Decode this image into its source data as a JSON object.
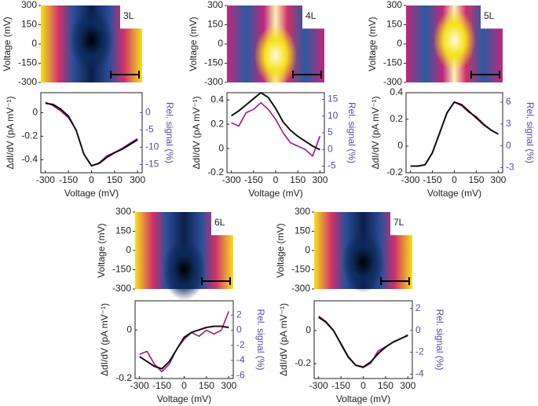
{
  "chart_data": [
    {
      "type": "heatmap",
      "label": "3L",
      "ylabel": "Voltage (mV)",
      "ylim": [
        -300,
        300
      ],
      "yticks": [
        300,
        150,
        0,
        -150,
        -300
      ]
    },
    {
      "type": "line",
      "xlabel": "Voltage (mV)",
      "ylabel": "ΔdI/dV (pA mV⁻¹)",
      "y2label": "Rel. signal (%)",
      "x": [
        -300,
        -250,
        -200,
        -150,
        -100,
        -50,
        0,
        50,
        100,
        150,
        200,
        250,
        300
      ],
      "xlim": [
        -330,
        330
      ],
      "xticks": [
        -300,
        -150,
        0,
        150,
        300
      ],
      "ylim": [
        -0.51,
        0.17
      ],
      "yticks": [
        0,
        -0.2,
        -0.4
      ],
      "y2lim": [
        -17.4,
        5.8
      ],
      "y2ticks": [
        0,
        -5,
        -10,
        -15
      ],
      "series": [
        {
          "color": "#a0157d",
          "axis": "y2",
          "values": [
            3,
            2,
            0.5,
            -1.5,
            -5,
            -12,
            -15.5,
            -14.5,
            -12.5,
            -11.5,
            -10.3,
            -8.9,
            -7.5
          ]
        },
        {
          "color": "#111111",
          "values": [
            0.08,
            0.07,
            0.03,
            -0.03,
            -0.15,
            -0.35,
            -0.45,
            -0.43,
            -0.38,
            -0.34,
            -0.31,
            -0.27,
            -0.23
          ]
        }
      ]
    },
    {
      "type": "heatmap",
      "label": "4L",
      "ylabel": "Voltage (mV)",
      "ylim": [
        -300,
        300
      ],
      "yticks": [
        300,
        150,
        0,
        -150,
        -300
      ]
    },
    {
      "type": "line",
      "xlabel": "Voltage (mV)",
      "ylabel": "ΔdI/dV (pA mV⁻¹)",
      "y2label": "Rel. signal (%)",
      "x": [
        -300,
        -250,
        -200,
        -150,
        -100,
        -50,
        0,
        50,
        100,
        150,
        200,
        250,
        300
      ],
      "xlim": [
        -330,
        330
      ],
      "xticks": [
        -300,
        -150,
        0,
        150,
        300
      ],
      "ylim": [
        -0.2,
        0.46
      ],
      "yticks": [
        0.4,
        0.2,
        0,
        -0.2
      ],
      "y2lim": [
        -7,
        17
      ],
      "y2ticks": [
        15,
        10,
        5,
        0,
        -5
      ],
      "series": [
        {
          "color": "#a0157d",
          "axis": "y2",
          "values": [
            8,
            7,
            11,
            12,
            14,
            12,
            9,
            5,
            2,
            1,
            0,
            -2,
            4
          ]
        },
        {
          "color": "#111111",
          "values": [
            0.27,
            0.31,
            0.36,
            0.41,
            0.46,
            0.42,
            0.33,
            0.22,
            0.15,
            0.1,
            0.06,
            0.02,
            -0.01
          ]
        }
      ]
    },
    {
      "type": "heatmap",
      "label": "5L",
      "ylabel": "Voltage (mV)",
      "ylim": [
        -300,
        300
      ],
      "yticks": [
        300,
        150,
        0,
        -150,
        -300
      ]
    },
    {
      "type": "line",
      "xlabel": "Voltage (mV)",
      "ylabel": "ΔdI/dV (pA mV⁻¹)",
      "y2label": "Rel. signal (%)",
      "x": [
        -300,
        -250,
        -200,
        -150,
        -100,
        -50,
        0,
        50,
        100,
        150,
        200,
        250,
        300
      ],
      "xlim": [
        -330,
        330
      ],
      "xticks": [
        -300,
        -150,
        0,
        150,
        300
      ],
      "ylim": [
        -0.2,
        0.4
      ],
      "yticks": [
        0.4,
        0.2,
        0,
        -0.2
      ],
      "y2lim": [
        -3.7,
        7.3
      ],
      "y2ticks": [
        6,
        3,
        0,
        -3
      ],
      "series": [
        {
          "color": "#a0157d",
          "axis": "y2",
          "values": [
            -2.8,
            -2.8,
            -2.6,
            -1,
            1.8,
            4.5,
            6,
            5.5,
            4.6,
            4,
            3,
            2.2,
            1.6
          ]
        },
        {
          "color": "#111111",
          "values": [
            -0.15,
            -0.15,
            -0.14,
            -0.05,
            0.1,
            0.25,
            0.33,
            0.31,
            0.26,
            0.21,
            0.16,
            0.12,
            0.09
          ]
        }
      ]
    },
    {
      "type": "heatmap",
      "label": "6L",
      "ylabel": "Voltage (mV)",
      "ylim": [
        -300,
        300
      ],
      "yticks": [
        300,
        150,
        0,
        -150,
        -300
      ]
    },
    {
      "type": "line",
      "xlabel": "Voltage (mV)",
      "ylabel": "ΔdI/dV (pA mV⁻¹)",
      "y2label": "Rel. signal (%)",
      "x": [
        -300,
        -250,
        -200,
        -150,
        -100,
        -50,
        0,
        50,
        100,
        150,
        200,
        250,
        300
      ],
      "xlim": [
        -330,
        330
      ],
      "xticks": [
        -300,
        -150,
        0,
        150,
        300
      ],
      "ylim": [
        -0.2,
        0.12
      ],
      "yticks": [
        0,
        -0.2
      ],
      "y2lim": [
        -6.4,
        3.9
      ],
      "y2ticks": [
        2,
        0,
        -2,
        -4,
        -6
      ],
      "series": [
        {
          "color": "#a0157d",
          "axis": "y2",
          "values": [
            -3.2,
            -2.8,
            -4.5,
            -5.5,
            -4.5,
            -2.5,
            -1.2,
            -0.3,
            -0.8,
            0,
            -0.5,
            0,
            2.5
          ]
        },
        {
          "color": "#111111",
          "values": [
            -0.11,
            -0.13,
            -0.15,
            -0.16,
            -0.13,
            -0.08,
            -0.03,
            -0.01,
            0,
            0.01,
            0.015,
            0.015,
            0.01
          ]
        }
      ]
    },
    {
      "type": "heatmap",
      "label": "7L",
      "ylabel": "Voltage (mV)",
      "ylim": [
        -300,
        300
      ],
      "yticks": [
        300,
        150,
        0,
        -150,
        -300
      ]
    },
    {
      "type": "line",
      "xlabel": "Voltage (mV)",
      "ylabel": "ΔdI/dV (pA mV⁻¹)",
      "y2label": "Rel. signal (%)",
      "x": [
        -300,
        -250,
        -200,
        -150,
        -100,
        -50,
        0,
        50,
        100,
        150,
        200,
        250,
        300
      ],
      "xlim": [
        -330,
        330
      ],
      "xticks": [
        -300,
        -150,
        0,
        150,
        300
      ],
      "ylim": [
        -0.29,
        0.18
      ],
      "yticks": [
        0,
        -0.2
      ],
      "y2lim": [
        -4.4,
        2.7
      ],
      "y2ticks": [
        2,
        0,
        -2,
        -4
      ],
      "series": [
        {
          "color": "#a0157d",
          "axis": "y2",
          "values": [
            1.3,
            0.8,
            0,
            -1.3,
            -2.5,
            -3.2,
            -3.4,
            -3,
            -1.9,
            -1.5,
            -1.1,
            -0.8,
            -0.4
          ]
        },
        {
          "color": "#111111",
          "values": [
            0.08,
            0.05,
            0,
            -0.08,
            -0.16,
            -0.21,
            -0.22,
            -0.19,
            -0.14,
            -0.1,
            -0.07,
            -0.05,
            -0.03
          ]
        }
      ]
    }
  ]
}
